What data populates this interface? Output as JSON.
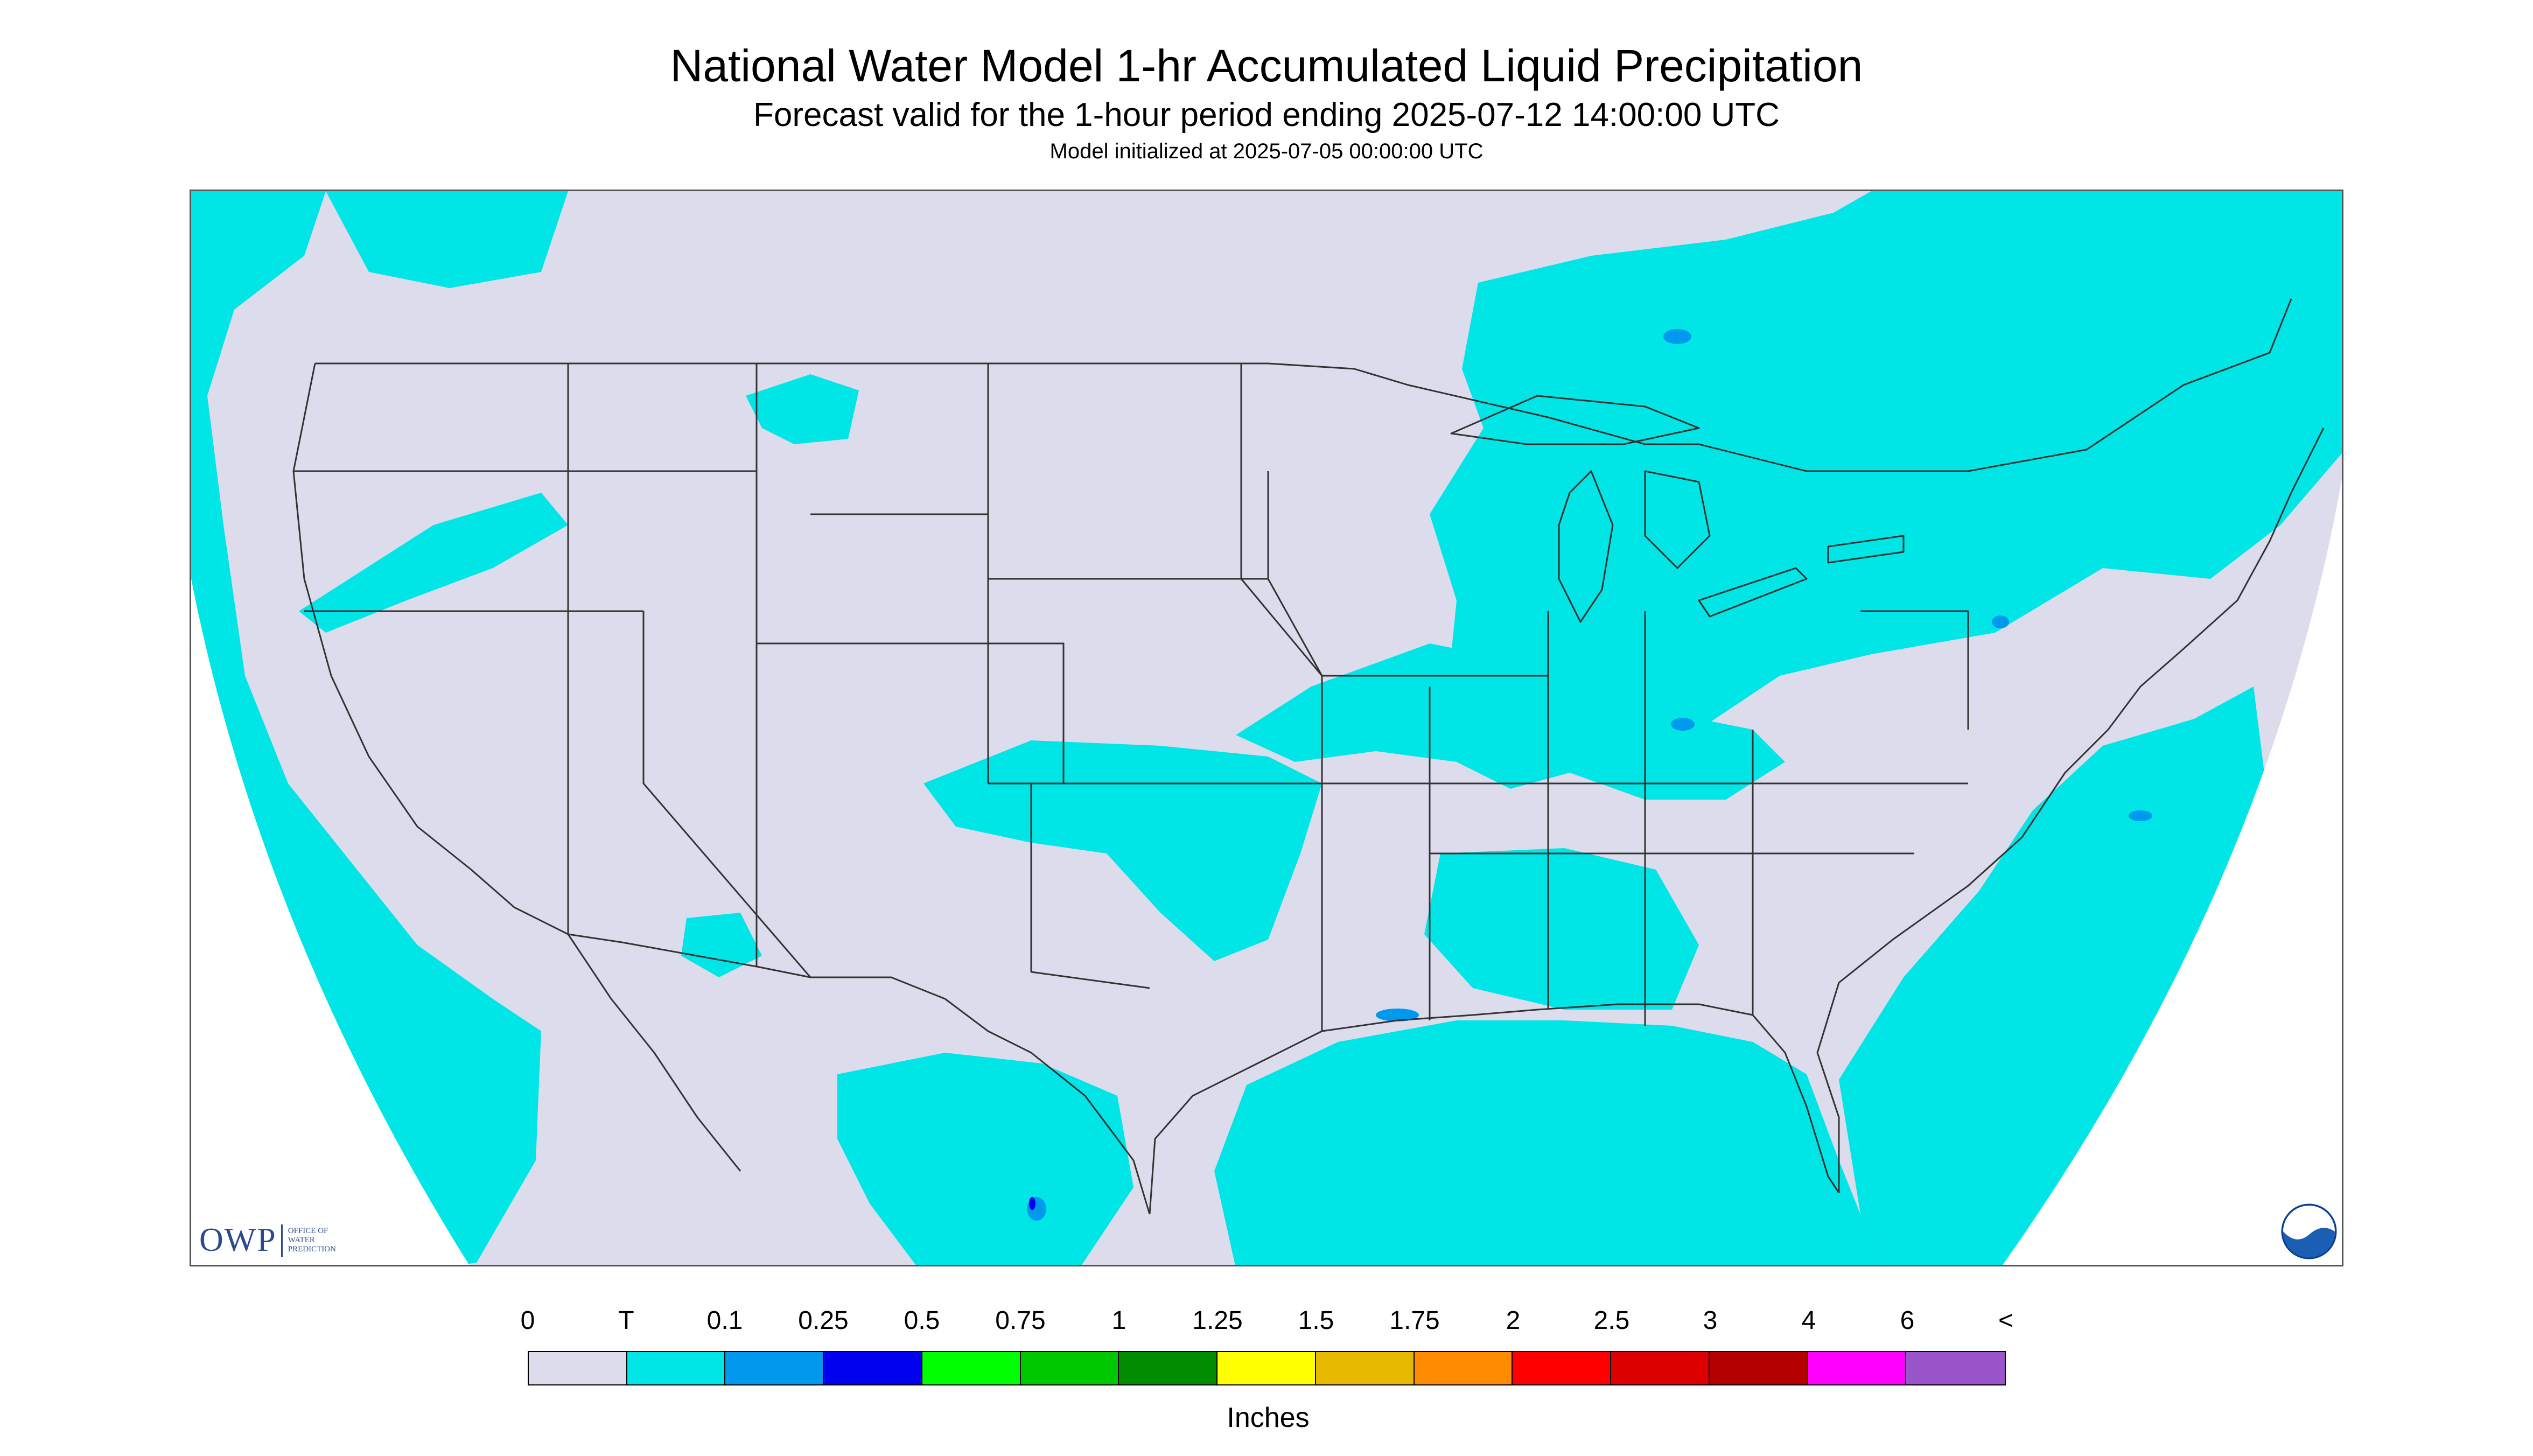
{
  "header": {
    "title": "National Water Model 1-hr Accumulated Liquid Precipitation",
    "subtitle": "Forecast valid for the 1-hour period ending 2025-07-12 14:00:00 UTC",
    "initialized": "Model initialized at 2025-07-05 00:00:00 UTC"
  },
  "map": {
    "background_color": "#dcdcec",
    "outside_color": "#ffffff",
    "boundary_color": "#333333",
    "trace_color": "#00e5e5"
  },
  "logos": {
    "owp_mark": "OWP",
    "owp_text": [
      "OFFICE OF",
      "WATER",
      "PREDICTION"
    ],
    "noaa_text": "NOAA"
  },
  "legend": {
    "labels": [
      "0",
      "T",
      "0.1",
      "0.25",
      "0.5",
      "0.75",
      "1",
      "1.25",
      "1.5",
      "1.75",
      "2",
      "2.5",
      "3",
      "4",
      "6",
      "<"
    ],
    "colors": [
      "#dcdcec",
      "#00e5e5",
      "#0099ee",
      "#0000ee",
      "#00ff00",
      "#00c800",
      "#008c00",
      "#ffff00",
      "#e6b800",
      "#ff8c00",
      "#ff0000",
      "#dc0000",
      "#b40000",
      "#ff00ff",
      "#9955c9"
    ],
    "unit": "Inches"
  }
}
